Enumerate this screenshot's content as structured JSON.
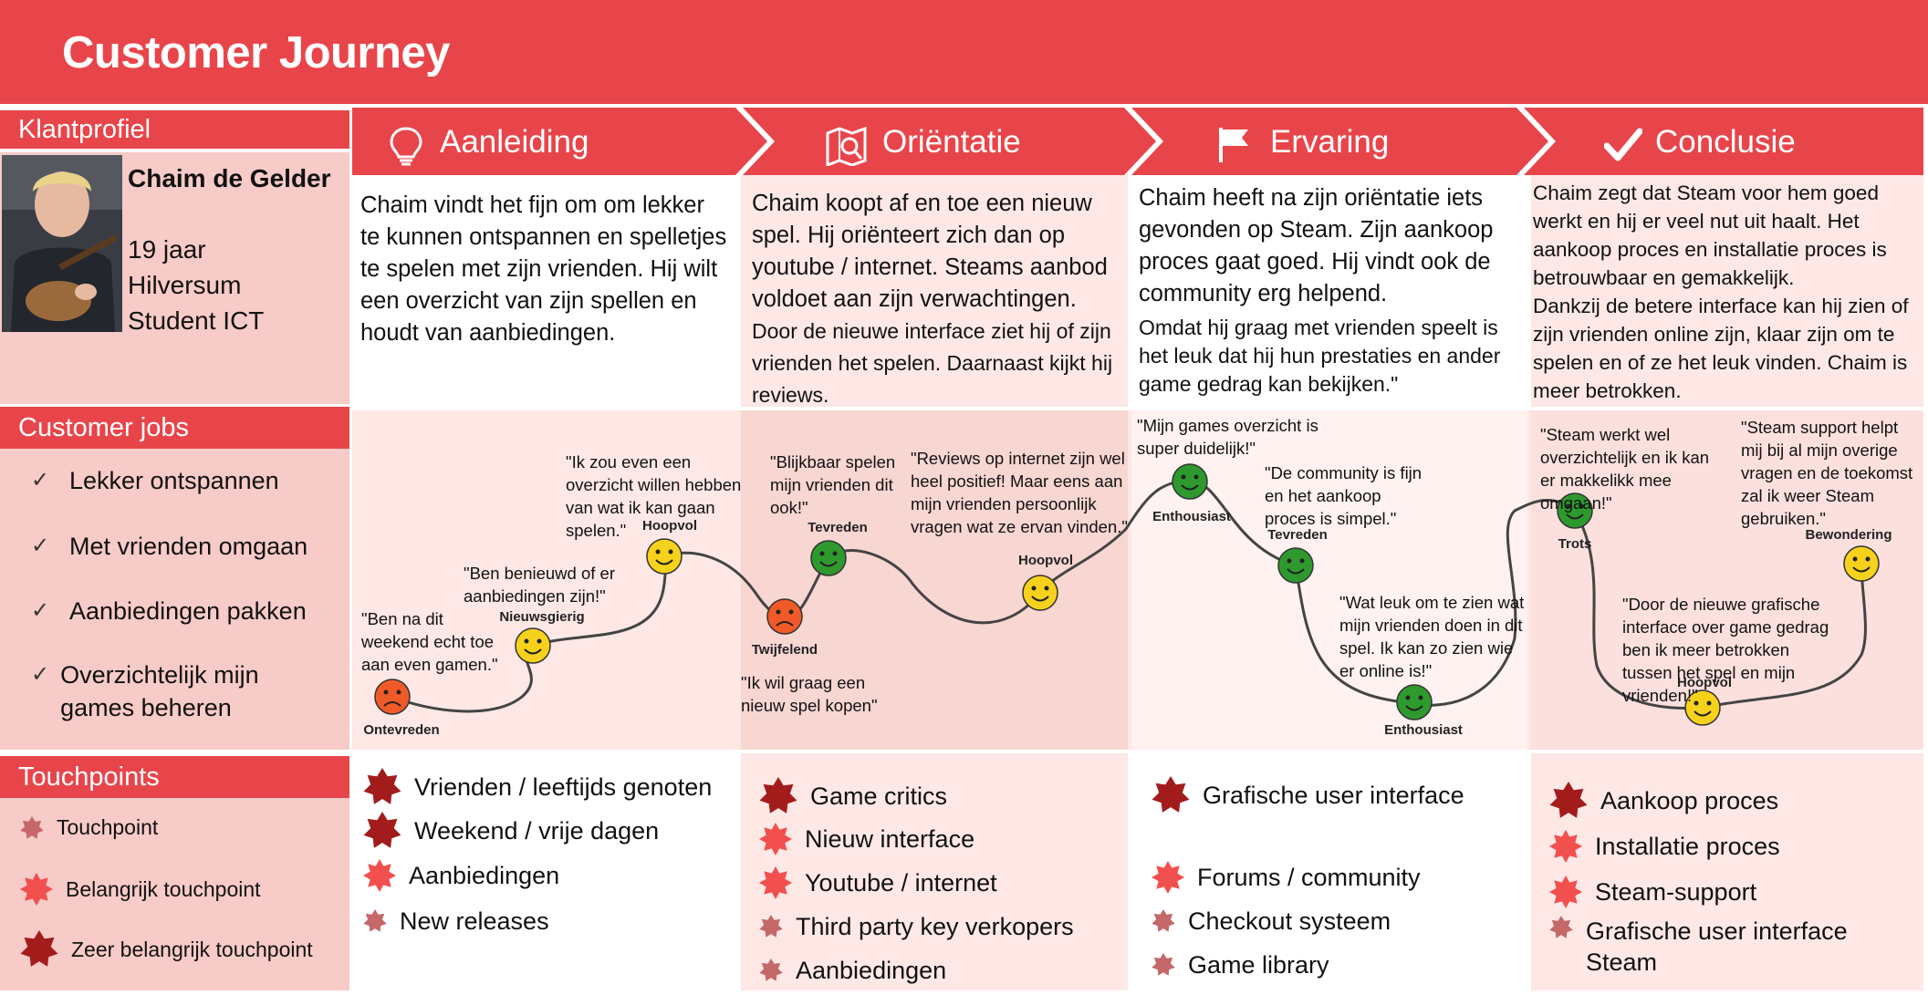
{
  "title": "Customer Journey",
  "colors": {
    "accent": "#e8454b",
    "panel": "#f7cbc7",
    "stage_fill": "#fde8e6",
    "very_important": "#a31c1c",
    "important": "#f2504f",
    "normal": "#c4686a"
  },
  "profile": {
    "header": "Klantprofiel",
    "name": "Chaim de Gelder",
    "age": "19 jaar",
    "city": "Hilversum",
    "occupation": "Student ICT"
  },
  "jobs": {
    "header": "Customer jobs",
    "items": [
      "Lekker ontspannen",
      "Met vrienden omgaan",
      "Aanbiedingen pakken",
      "Overzichtelijk mijn games beheren"
    ]
  },
  "legend": {
    "header": "Touchpoints",
    "items": [
      {
        "label": "Touchpoint",
        "level": "normal"
      },
      {
        "label": "Belangrijk touchpoint",
        "level": "important"
      },
      {
        "label": "Zeer belangrijk touchpoint",
        "level": "very_important"
      }
    ]
  },
  "stages": [
    {
      "name": "Aanleiding",
      "icon": "lightbulb-icon",
      "text_main": "Chaim vindt het fijn om om lekker te kunnen ontspannen en spelletjes te spelen met zijn vrienden. Hij wilt een overzicht van zijn spellen en houdt van aanbiedingen.",
      "text_extra": "",
      "touchpoints": [
        {
          "label": "Vrienden / leeftijds genoten",
          "level": "very_important"
        },
        {
          "label": "Weekend / vrije dagen",
          "level": "very_important"
        },
        {
          "label": "Aanbiedingen",
          "level": "important"
        },
        {
          "label": "New releases",
          "level": "normal"
        }
      ]
    },
    {
      "name": "Oriëntatie",
      "icon": "map-search-icon",
      "text_main": "Chaim koopt af en toe een nieuw spel. Hij oriënteert zich dan op youtube / internet. Steams aanbod voldoet aan zijn verwachtingen.",
      "text_extra": "Door de nieuwe interface ziet hij of zijn vrienden het spelen. Daarnaast kijkt hij reviews.",
      "touchpoints": [
        {
          "label": "Game critics",
          "level": "very_important"
        },
        {
          "label": "Nieuw interface",
          "level": "important"
        },
        {
          "label": "Youtube / internet",
          "level": "important"
        },
        {
          "label": "Third party key verkopers",
          "level": "normal"
        },
        {
          "label": "Aanbiedingen",
          "level": "normal"
        }
      ]
    },
    {
      "name": "Ervaring",
      "icon": "flag-icon",
      "text_main": "Chaim heeft na zijn oriëntatie iets gevonden op Steam. Zijn aankoop proces gaat goed. Hij vindt ook de community erg helpend.",
      "text_extra": "Omdat hij graag met vrienden speelt is het leuk dat hij hun prestaties en ander game gedrag kan bekijken.\"",
      "touchpoints": [
        {
          "label": "Grafische user interface",
          "level": "very_important"
        },
        {
          "label": "Forums / community",
          "level": "important"
        },
        {
          "label": "Checkout systeem",
          "level": "normal"
        },
        {
          "label": "Game library",
          "level": "normal"
        }
      ]
    },
    {
      "name": "Conclusie",
      "icon": "checkmark-icon",
      "text_main": "Chaim zegt dat Steam voor hem goed werkt en hij er veel nut uit haalt. Het aankoop proces en installatie proces is betrouwbaar en gemakkelijk.",
      "text_extra": "Dankzij de betere interface kan hij zien of zijn vrienden online zijn, klaar zijn om te spelen en of ze het leuk vinden. Chaim is meer betrokken.",
      "touchpoints": [
        {
          "label": "Aankoop proces",
          "level": "very_important"
        },
        {
          "label": "Installatie proces",
          "level": "important"
        },
        {
          "label": "Steam-support",
          "level": "important"
        },
        {
          "label": "Grafische user interface Steam",
          "level": "normal"
        }
      ]
    }
  ],
  "emotions": [
    {
      "label": "Ontevreden",
      "mood": "unhappy",
      "quote": "\"Ben na dit weekend echt toe aan even gamen.\""
    },
    {
      "label": "Nieuwsgierig",
      "mood": "curious",
      "quote": "\"Ben benieuwd of er aanbiedingen zijn!\""
    },
    {
      "label": "Hoopvol",
      "mood": "hopeful",
      "quote": "\"Ik zou even een overzicht willen hebben van wat ik kan gaan spelen.\""
    },
    {
      "label": "Twijfelend",
      "mood": "doubtful",
      "quote": "\"Ik wil graag een nieuw spel kopen\""
    },
    {
      "label": "Tevreden",
      "mood": "satisfied",
      "quote": "\"Blijkbaar spelen mijn vrienden dit ook!\""
    },
    {
      "label": "Hoopvol",
      "mood": "hopeful",
      "quote": "\"Reviews op internet zijn wel heel positief! Maar eens aan mijn vrienden persoonlijk vragen wat ze ervan vinden.\""
    },
    {
      "label": "Enthousiast",
      "mood": "enthusiastic",
      "quote": "\"Mijn games overzicht is super duidelijk!\""
    },
    {
      "label": "Tevreden",
      "mood": "satisfied",
      "quote": "\"De community is fijn en het aankoop proces is simpel.\""
    },
    {
      "label": "Enthousiast",
      "mood": "enthusiastic",
      "quote": "\"Wat leuk om te zien wat mijn vrienden doen in dit spel. Ik kan zo zien wie er online is!\""
    },
    {
      "label": "Trots",
      "mood": "proud",
      "quote": "\"Steam werkt wel overzichtelijk en ik kan er makkelikk mee omgaan!\""
    },
    {
      "label": "Hoopvol",
      "mood": "hopeful",
      "quote": "\"Door de nieuwe grafische interface over game gedrag ben ik meer betrokken tussen het spel en mijn vrienden!\""
    },
    {
      "label": "Bewondering",
      "mood": "admiring",
      "quote": "\"Steam support helpt mij bij al mijn overige vragen en de toekomst zal ik weer Steam gebruiken.\""
    }
  ]
}
